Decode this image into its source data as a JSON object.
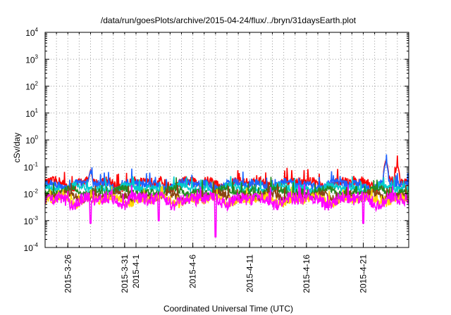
{
  "chart_data": {
    "type": "line",
    "title": "/data/run/goesPlots/archive/2015-04-24/flux/../bryn/31daysEarth.plot",
    "xlabel": "Coordinated Universal Time (UTC)",
    "ylabel": "cSv/day",
    "yscale": "log",
    "ylim": [
      0.0001,
      10000
    ],
    "y_ticks": [
      {
        "base": "10",
        "exp": "-4",
        "value": 0.0001
      },
      {
        "base": "10",
        "exp": "-3",
        "value": 0.001
      },
      {
        "base": "10",
        "exp": "-2",
        "value": 0.01
      },
      {
        "base": "10",
        "exp": "-1",
        "value": 0.1
      },
      {
        "base": "10",
        "exp": "0",
        "value": 1
      },
      {
        "base": "10",
        "exp": "1",
        "value": 10
      },
      {
        "base": "10",
        "exp": "2",
        "value": 100
      },
      {
        "base": "10",
        "exp": "3",
        "value": 1000
      },
      {
        "base": "10",
        "exp": "4",
        "value": 10000
      }
    ],
    "xlim": [
      "2015-03-24",
      "2015-04-25"
    ],
    "x_ticks": [
      {
        "label": "2015-3-26",
        "value": "2015-03-26"
      },
      {
        "label": "2015-3-31",
        "value": "2015-03-31"
      },
      {
        "label": "2015-4-1",
        "value": "2015-04-01"
      },
      {
        "label": "2015-4-6",
        "value": "2015-04-06"
      },
      {
        "label": "2015-4-11",
        "value": "2015-04-11"
      },
      {
        "label": "2015-4-16",
        "value": "2015-04-16"
      },
      {
        "label": "2015-4-21",
        "value": "2015-04-21"
      }
    ],
    "grid": true,
    "series": [
      {
        "color": "#ff0000",
        "base": 0.025,
        "noise": 0.35,
        "spikes": [
          [
            "2015-03-28",
            0.075
          ],
          [
            "2015-04-23",
            0.18
          ],
          [
            "2015-04-24",
            0.12
          ]
        ]
      },
      {
        "color": "#1e64ff",
        "base": 0.022,
        "noise": 0.3,
        "spikes": [
          [
            "2015-03-28",
            0.07
          ],
          [
            "2015-04-23",
            0.15
          ]
        ]
      },
      {
        "color": "#00cccc",
        "base": 0.016,
        "noise": 0.25,
        "spikes": []
      },
      {
        "color": "#228b22",
        "base": 0.012,
        "noise": 0.25,
        "spikes": []
      },
      {
        "color": "#8b4513",
        "base": 0.008,
        "noise": 0.3,
        "spikes": []
      },
      {
        "color": "#ffd700",
        "base": 0.006,
        "noise": 0.3,
        "spikes": []
      },
      {
        "color": "#ff00ff",
        "base": 0.006,
        "noise": 0.45,
        "spikes": [],
        "dips": [
          [
            "2015-03-28",
            0.0008
          ],
          [
            "2015-04-03",
            0.001
          ],
          [
            "2015-04-08",
            0.00025
          ],
          [
            "2015-04-21",
            0.0008
          ]
        ]
      }
    ]
  }
}
